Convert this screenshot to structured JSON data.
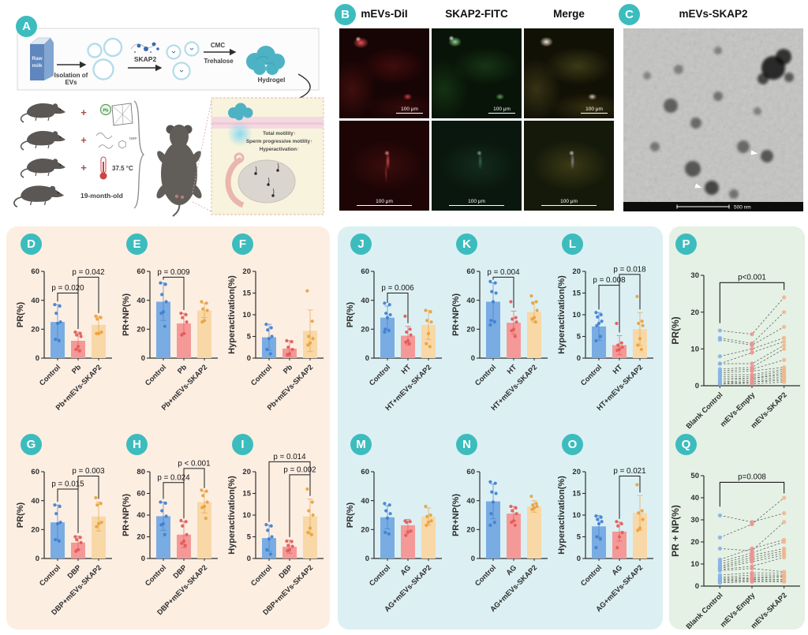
{
  "figure": {
    "panel_a": {
      "letter": "A",
      "milk_line1": "Raw",
      "milk_line2": "milk",
      "step1_line1": "Isolation of",
      "step1_line2": "EVs",
      "skap2_label": "SKAP2",
      "cmc_label": "CMC",
      "trehalose_label": "Trehalose",
      "hydrogel_label": "Hydrogel",
      "plus": "+",
      "pb_label": "Pb",
      "dbp_label": "DBP",
      "temp_label": "37.5 °C",
      "aged_label": "19-month-old",
      "inset": {
        "line1": "Total motility",
        "line2": "Sperm progressive motility",
        "line3": "Hyperactivation",
        "arrow": "↑"
      }
    },
    "panel_b": {
      "letter": "B",
      "columns": [
        "mEVs-DiI",
        "SKAP2-FITC",
        "Merge"
      ],
      "scale_label": "100 μm"
    },
    "panel_c": {
      "letter": "C",
      "title": "mEVs-SKAP2",
      "scale_label": "500 nm"
    }
  },
  "colors": {
    "badge_teal": "#3dbcbe",
    "axis": "#2e2e2e",
    "bar_blue": "#79ace2",
    "bar_red": "#f49997",
    "bar_orange": "#f8d8a6",
    "dot_blue": "#3f7fd0",
    "dot_red": "#e25a58",
    "dot_orange": "#e9a13e",
    "pair_blue": "#85b2e8",
    "pair_red": "#ef8f8d",
    "pair_orange": "#f4b48b",
    "sec_left_bg": "#fdeee2",
    "sec_mid_bg": "#dcf0f3",
    "sec_right_bg": "#e4f1e4"
  },
  "chart_data": [
    {
      "id": "D",
      "type": "bar",
      "ylabel": "PR(%)",
      "ylim": [
        0,
        60
      ],
      "yticks": [
        0,
        20,
        40,
        60
      ],
      "categories": [
        "Control",
        "Pb",
        "Pb+mEVs-SKAP2"
      ],
      "values": [
        25,
        12,
        23
      ],
      "errors": [
        12,
        6,
        6
      ],
      "dots": [
        [
          37,
          36,
          31,
          25,
          24,
          13,
          12
        ],
        [
          18,
          17,
          16,
          15,
          8,
          6,
          5
        ],
        [
          29,
          28,
          27,
          18,
          17,
          17
        ]
      ],
      "pvalues": [
        {
          "label": "p = 0.020",
          "from": 0,
          "to": 1,
          "by": 45
        },
        {
          "label": "p = 0.042",
          "from": 1,
          "to": 2,
          "by": 56
        }
      ]
    },
    {
      "id": "E",
      "type": "bar",
      "ylabel": "PR+NP(%)",
      "ylim": [
        0,
        60
      ],
      "yticks": [
        0,
        20,
        40,
        60
      ],
      "categories": [
        "Control",
        "Pb",
        "Pb+mEVs-SKAP2"
      ],
      "values": [
        39,
        24,
        33
      ],
      "errors": [
        13,
        7,
        5
      ],
      "dots": [
        [
          52,
          51,
          44,
          39,
          32,
          31,
          22
        ],
        [
          31,
          30,
          28,
          25,
          17,
          16
        ],
        [
          39,
          38,
          34,
          33,
          26,
          25
        ]
      ],
      "pvalues": [
        {
          "label": "p = 0.009",
          "from": 0,
          "to": 1,
          "by": 56
        }
      ]
    },
    {
      "id": "F",
      "type": "bar",
      "ylabel": "Hyperactivation(%)",
      "ylim": [
        0,
        20
      ],
      "yticks": [
        0,
        5,
        10,
        15,
        20
      ],
      "categories": [
        "Control",
        "Pb",
        "Pb+mEVs-SKAP2"
      ],
      "values": [
        4.8,
        2.2,
        6.3
      ],
      "errors": [
        3,
        1.8,
        4.8
      ],
      "dots": [
        [
          7.8,
          7,
          6.5,
          5,
          4.5,
          2,
          1
        ],
        [
          4,
          3.8,
          2.5,
          2,
          1,
          0.8
        ],
        [
          15.5,
          8.5,
          5,
          4.5,
          3.5,
          3
        ]
      ],
      "pvalues": []
    },
    {
      "id": "G",
      "type": "bar",
      "ylabel": "PR(%)",
      "ylim": [
        0,
        60
      ],
      "yticks": [
        0,
        20,
        40,
        60
      ],
      "categories": [
        "Control",
        "DBP",
        "DBP+mEVs-SKAP2"
      ],
      "values": [
        25,
        11,
        29
      ],
      "errors": [
        12,
        4.5,
        10
      ],
      "dots": [
        [
          37,
          36,
          31,
          25,
          24,
          13,
          12
        ],
        [
          15,
          14.5,
          13,
          11,
          6,
          5
        ],
        [
          42,
          38,
          37,
          25,
          24,
          22
        ]
      ],
      "pvalues": [
        {
          "label": "p = 0.015",
          "from": 0,
          "to": 1,
          "by": 48
        },
        {
          "label": "p = 0.003",
          "from": 1,
          "to": 2,
          "by": 57
        }
      ]
    },
    {
      "id": "H",
      "type": "bar",
      "ylabel": "PR+NP(%)",
      "ylim": [
        0,
        80
      ],
      "yticks": [
        0,
        20,
        40,
        60,
        80
      ],
      "categories": [
        "Control",
        "DBP",
        "DBP+mEVs-SKAP2"
      ],
      "values": [
        39,
        22,
        52
      ],
      "errors": [
        13,
        12,
        10
      ],
      "dots": [
        [
          52,
          51,
          44,
          39,
          32,
          31,
          22
        ],
        [
          35,
          34,
          30,
          22,
          16,
          14,
          12
        ],
        [
          63,
          62,
          58,
          52,
          48,
          47,
          37
        ]
      ],
      "pvalues": [
        {
          "label": "p = 0.024",
          "from": 0,
          "to": 1,
          "by": 70
        },
        {
          "label": "p < 0.001",
          "from": 1,
          "to": 2,
          "by": 83
        }
      ]
    },
    {
      "id": "I",
      "type": "bar",
      "ylabel": "Hyperactivation(%)",
      "ylim": [
        0,
        20
      ],
      "yticks": [
        0,
        5,
        10,
        15,
        20
      ],
      "categories": [
        "Control",
        "DBP",
        "DBP+mEVs-SKAP2"
      ],
      "values": [
        4.7,
        2.7,
        9.7
      ],
      "errors": [
        3,
        1.5,
        4
      ],
      "dots": [
        [
          7.8,
          7.5,
          6.5,
          5,
          4.5,
          2,
          1
        ],
        [
          4,
          3.9,
          3,
          2.8,
          2,
          1.8
        ],
        [
          16,
          13,
          11,
          10,
          7,
          6,
          5.5
        ]
      ],
      "pvalues": [
        {
          "label": "p = 0.014",
          "from": 0,
          "to": 2,
          "by": 22.3
        },
        {
          "label": "p = 0.002",
          "from": 1,
          "to": 2,
          "by": 19.3
        }
      ]
    },
    {
      "id": "J",
      "type": "bar",
      "ylabel": "PR(%)",
      "ylim": [
        0,
        60
      ],
      "yticks": [
        0,
        20,
        40,
        60
      ],
      "categories": [
        "Control",
        "HT",
        "HT+mEVs-SKAP2"
      ],
      "values": [
        28,
        15.5,
        23
      ],
      "errors": [
        8,
        6.5,
        10
      ],
      "dots": [
        [
          38,
          37,
          31,
          30,
          28,
          20,
          19,
          18
        ],
        [
          29,
          20,
          18,
          16,
          12,
          11,
          10
        ],
        [
          33,
          32,
          26,
          25,
          17,
          10,
          8
        ]
      ],
      "pvalues": [
        {
          "label": "p = 0.006",
          "from": 0,
          "to": 1,
          "by": 45
        }
      ]
    },
    {
      "id": "K",
      "type": "bar",
      "ylabel": "PR+NP(%)",
      "ylim": [
        0,
        60
      ],
      "yticks": [
        0,
        20,
        40,
        60
      ],
      "categories": [
        "Control",
        "HT",
        "HT+mEVs-SKAP2"
      ],
      "values": [
        39,
        24.5,
        32
      ],
      "errors": [
        13,
        8,
        7
      ],
      "dots": [
        [
          53,
          52,
          46,
          45,
          39,
          26,
          25,
          23
        ],
        [
          39,
          28,
          27,
          25,
          20,
          19,
          15
        ],
        [
          43,
          39,
          38,
          33,
          28,
          27,
          25
        ]
      ],
      "pvalues": [
        {
          "label": "p = 0.004",
          "from": 0,
          "to": 1,
          "by": 56
        }
      ]
    },
    {
      "id": "L",
      "type": "bar",
      "ylabel": "Hyperactivation(%)",
      "ylim": [
        0,
        20
      ],
      "yticks": [
        0,
        5,
        10,
        15,
        20
      ],
      "categories": [
        "Control",
        "HT",
        "HT+mEVs-SKAP2"
      ],
      "values": [
        7.3,
        3,
        6.7
      ],
      "errors": [
        3.2,
        2.2,
        3.8
      ],
      "dots": [
        [
          10.5,
          10,
          9.5,
          8.5,
          8,
          7.5,
          5,
          4
        ],
        [
          8,
          3.5,
          3,
          2.5,
          2,
          1.8
        ],
        [
          14.2,
          8.5,
          8,
          7.5,
          4.5,
          3,
          2
        ]
      ],
      "pvalues": [
        {
          "label": "p = 0.008",
          "from": 0,
          "to": 1,
          "by": 16.8
        },
        {
          "label": "p = 0.018",
          "from": 1,
          "to": 2,
          "by": 19.3
        }
      ]
    },
    {
      "id": "M",
      "type": "bar",
      "ylabel": "PR(%)",
      "ylim": [
        0,
        60
      ],
      "yticks": [
        0,
        20,
        40,
        60
      ],
      "categories": [
        "Control",
        "AG",
        "AG+mEVs-SKAP2"
      ],
      "values": [
        28.5,
        23,
        29
      ],
      "errors": [
        8,
        4,
        6
      ],
      "dots": [
        [
          38,
          37,
          33,
          31,
          28,
          18,
          17
        ],
        [
          26,
          25.5,
          25,
          19,
          18,
          16
        ],
        [
          36,
          30,
          29,
          26,
          25,
          23
        ]
      ],
      "pvalues": []
    },
    {
      "id": "N",
      "type": "bar",
      "ylabel": "PR+NP(%)",
      "ylim": [
        0,
        60
      ],
      "yticks": [
        0,
        20,
        40,
        60
      ],
      "categories": [
        "Control",
        "AG",
        "AG+mEVs-SKAP2"
      ],
      "values": [
        39.5,
        31,
        36
      ],
      "errors": [
        12,
        5,
        4
      ],
      "dots": [
        [
          53,
          52,
          46,
          45,
          39,
          31,
          25,
          23
        ],
        [
          36,
          35,
          33,
          31,
          26,
          25,
          23
        ],
        [
          43,
          38,
          37,
          36,
          35,
          34
        ]
      ],
      "pvalues": []
    },
    {
      "id": "O",
      "type": "bar",
      "ylabel": "Hyperactivation(%)",
      "ylim": [
        0,
        20
      ],
      "yticks": [
        0,
        5,
        10,
        15,
        20
      ],
      "categories": [
        "Control",
        "AG",
        "AG+mEVs-SKAP2"
      ],
      "values": [
        7.4,
        6.2,
        10.5
      ],
      "errors": [
        2.5,
        2.2,
        4
      ],
      "dots": [
        [
          9.8,
          9.5,
          9,
          8.5,
          8,
          5,
          4.5,
          2.5
        ],
        [
          8.5,
          8,
          7.5,
          6,
          5,
          2.5
        ],
        [
          17,
          11,
          10.5,
          9,
          7,
          6.5
        ]
      ],
      "pvalues": [
        {
          "label": "p = 0.021",
          "from": 1,
          "to": 2,
          "by": 19
        }
      ]
    },
    {
      "id": "P",
      "type": "paired",
      "ylabel": "PR(%)",
      "ylim": [
        0,
        30
      ],
      "yticks": [
        0,
        10,
        20,
        30
      ],
      "categories": [
        "Blank Control",
        "mEVs-Empty",
        "mEVs-SKAP2"
      ],
      "pvalue": {
        "label": "p<0.001",
        "from": 0,
        "to": 2,
        "by": 28,
        "legs": [
          17,
          26
        ]
      },
      "pairs": [
        [
          15,
          14,
          24
        ],
        [
          13,
          11.5,
          20
        ],
        [
          12.5,
          11,
          16
        ],
        [
          8,
          10,
          13
        ],
        [
          6,
          9,
          12
        ],
        [
          6,
          6,
          11
        ],
        [
          4.5,
          5,
          10
        ],
        [
          4,
          4.5,
          7
        ],
        [
          3.5,
          4,
          5
        ],
        [
          3,
          3,
          4.5
        ],
        [
          2.5,
          2.5,
          4
        ],
        [
          2,
          2,
          3.5
        ],
        [
          1.5,
          2,
          3
        ],
        [
          1,
          1.5,
          2.5
        ],
        [
          1,
          1,
          2
        ],
        [
          0.5,
          1,
          1.5
        ],
        [
          0.5,
          0.5,
          1
        ]
      ]
    },
    {
      "id": "Q",
      "type": "paired",
      "ylabel": "PR + NP(%)",
      "ylim": [
        0,
        50
      ],
      "yticks": [
        0,
        10,
        20,
        30,
        40,
        50
      ],
      "categories": [
        "Blank Control",
        "mEVs-Empty",
        "mEVs-SKAP2"
      ],
      "pvalue": {
        "label": "p=0.008",
        "from": 0,
        "to": 2,
        "by": 47,
        "legs": [
          36,
          42
        ]
      },
      "pairs": [
        [
          32,
          29,
          33
        ],
        [
          22,
          28,
          40
        ],
        [
          17,
          16,
          29
        ],
        [
          12,
          17,
          21
        ],
        [
          11,
          15,
          20
        ],
        [
          10,
          14,
          17
        ],
        [
          9,
          13,
          16
        ],
        [
          8.5,
          12,
          15
        ],
        [
          8,
          11,
          14
        ],
        [
          7.5,
          9,
          13
        ],
        [
          7,
          8,
          6.5
        ],
        [
          5,
          6,
          6
        ],
        [
          4,
          5,
          5
        ],
        [
          3.5,
          4,
          4.5
        ],
        [
          3,
          3.5,
          4
        ],
        [
          2.5,
          3,
          3
        ],
        [
          2,
          2.5,
          2.5
        ],
        [
          1.5,
          2,
          2
        ]
      ]
    }
  ]
}
